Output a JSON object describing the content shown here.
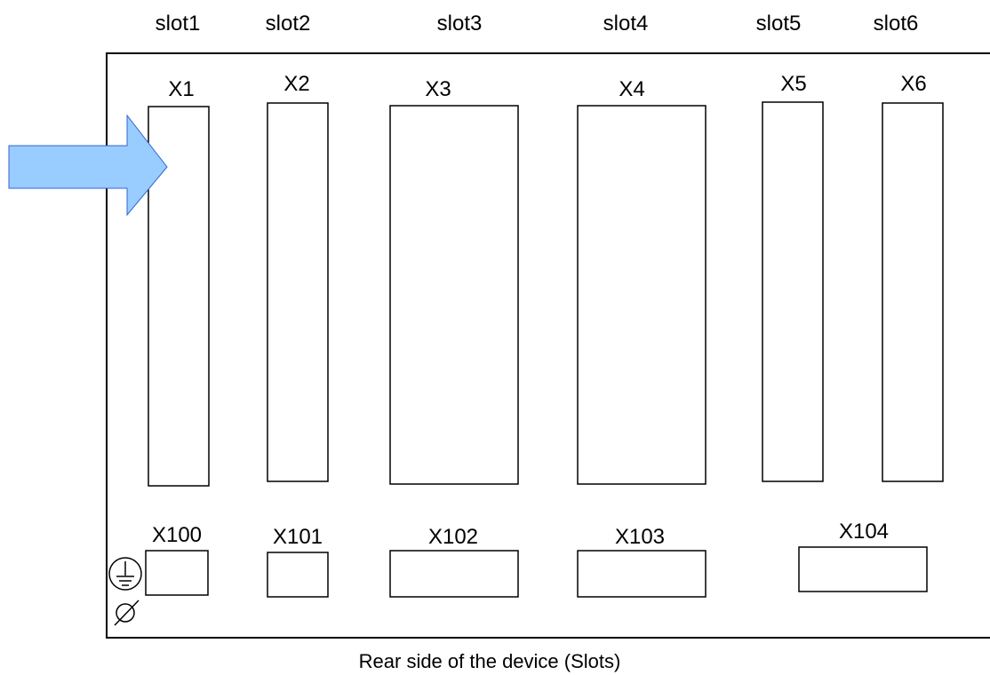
{
  "slots": [
    {
      "label": "slot1",
      "connector": "X1"
    },
    {
      "label": "slot2",
      "connector": "X2"
    },
    {
      "label": "slot3",
      "connector": "X3"
    },
    {
      "label": "slot4",
      "connector": "X4"
    },
    {
      "label": "slot5",
      "connector": "X5"
    },
    {
      "label": "slot6",
      "connector": "X6"
    }
  ],
  "bottom_connectors": [
    "X100",
    "X101",
    "X102",
    "X103",
    "X104"
  ],
  "caption": "Rear side of the device (Slots)",
  "icons": [
    "arrow-right-icon",
    "protective-earth-icon",
    "diameter-icon"
  ],
  "colors": {
    "arrow_fill": "#99ccff",
    "arrow_stroke": "#3366cc",
    "line": "#000000"
  }
}
